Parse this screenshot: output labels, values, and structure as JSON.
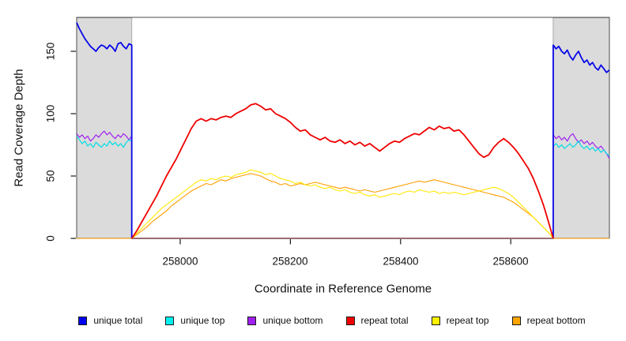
{
  "axes": {
    "x": {
      "title": "Coordinate in Reference Genome"
    },
    "y": {
      "title": "Read Coverage Depth"
    }
  },
  "legend": {
    "items": [
      {
        "label": "unique total",
        "color": "#0000F0"
      },
      {
        "label": "unique top",
        "color": "#00F0F0"
      },
      {
        "label": "unique bottom",
        "color": "#A020F0"
      },
      {
        "label": "repeat total",
        "color": "#F00000"
      },
      {
        "label": "repeat top",
        "color": "#FFF000"
      },
      {
        "label": "repeat bottom",
        "color": "#FFA500"
      }
    ]
  },
  "chart_data": {
    "type": "line",
    "title": "",
    "xlabel": "Coordinate in Reference Genome",
    "ylabel": "Read Coverage Depth",
    "xlim": [
      257812,
      258779
    ],
    "ylim": [
      0,
      177.2
    ],
    "x_ticks": [
      258000,
      258200,
      258400,
      258600
    ],
    "x_tick_labels": [
      "258000",
      "258200",
      "258400",
      "258600"
    ],
    "y_ticks": [
      0,
      50,
      100,
      150
    ],
    "y_tick_labels": [
      "0",
      "50",
      "100",
      "150"
    ],
    "grid": false,
    "legend_position": "bottom",
    "box_color": "#4d4d4d",
    "tick_color": "#1a1a1a",
    "masked_region_boundaries": [
      257912,
      258677
    ],
    "shaded_regions": [
      {
        "x0": 257812,
        "x1": 257912,
        "fill": "#dbdbdb",
        "stroke": "#a9a9a9"
      },
      {
        "x0": 258677,
        "x1": 258779,
        "fill": "#dbdbdb",
        "stroke": "#a9a9a9"
      }
    ],
    "series": [
      {
        "name": "unique bottom",
        "color": "#A020F0",
        "width": 1.2,
        "segments": [
          {
            "x0": 257812,
            "dx": 5,
            "v": [
              84,
              81,
              83,
              80,
              82,
              78,
              80,
              83,
              81,
              84,
              86,
              83,
              85,
              82,
              80,
              83,
              81,
              84,
              82,
              79,
              82
            ]
          },
          {
            "x0": 257912,
            "dx": 765,
            "v": [
              0,
              0
            ]
          },
          {
            "x0": 258677,
            "dx": 5.1,
            "v": [
              83,
              80,
              82,
              79,
              81,
              78,
              82,
              84,
              80,
              77,
              79,
              76,
              78,
              75,
              77,
              74,
              72,
              74,
              71,
              68,
              64
            ]
          }
        ]
      },
      {
        "name": "unique top",
        "color": "#00DDE5",
        "width": 1.2,
        "segments": [
          {
            "x0": 257812,
            "dx": 5,
            "v": [
              82,
              79,
              76,
              78,
              74,
              76,
              73,
              77,
              75,
              73,
              76,
              74,
              78,
              75,
              77,
              74,
              76,
              73,
              77,
              79,
              78
            ]
          },
          {
            "x0": 257912,
            "dx": 765,
            "v": [
              0,
              0
            ]
          },
          {
            "x0": 258677,
            "dx": 5.1,
            "v": [
              74,
              76,
              73,
              75,
              72,
              74,
              76,
              73,
              75,
              78,
              74,
              72,
              74,
              71,
              73,
              70,
              72,
              69,
              71,
              68,
              66
            ]
          }
        ]
      },
      {
        "name": "unique total",
        "color": "#0808E8",
        "width": 1.8,
        "segments": [
          {
            "x0": 257812,
            "dx": 5,
            "v": [
              173,
              168,
              164,
              160,
              157,
              154,
              152,
              150,
              153,
              155,
              154,
              152,
              155,
              153,
              150,
              156,
              157,
              154,
              152,
              156,
              155
            ]
          },
          {
            "x0": 257912,
            "dx": 765,
            "v": [
              0,
              0
            ]
          },
          {
            "x0": 258677,
            "dx": 5.1,
            "v": [
              155,
              152,
              154,
              150,
              148,
              151,
              146,
              143,
              147,
              150,
              145,
              141,
              143,
              139,
              141,
              137,
              135,
              139,
              136,
              133,
              135
            ]
          }
        ]
      },
      {
        "name": "repeat bottom",
        "color": "#FF9E00",
        "width": 1.1,
        "segments": [
          {
            "x0": 257912,
            "dx": 9,
            "v": [
              0,
              3,
              6,
              9,
              13,
              16,
              19,
              22,
              26,
              29,
              32,
              35,
              38,
              40,
              42,
              44,
              43,
              45,
              47,
              46,
              48,
              49,
              50,
              51,
              52,
              51,
              50,
              48,
              46,
              45,
              43,
              44,
              42,
              43,
              44,
              43,
              44,
              45,
              44,
              43,
              42,
              41,
              40,
              41,
              40,
              39,
              38,
              39,
              38,
              37,
              38,
              39,
              40,
              41,
              42,
              43,
              44,
              45,
              46,
              45,
              46,
              47,
              46,
              45,
              44,
              43,
              42,
              41,
              40,
              39,
              38,
              37,
              36,
              35,
              34,
              33,
              31,
              29,
              26,
              23,
              20,
              17,
              13,
              9,
              5,
              0
            ]
          },
          {
            "x0": 257812,
            "dx": 100,
            "v": [
              0,
              0
            ]
          },
          {
            "x0": 258677,
            "dx": 102,
            "v": [
              0,
              0
            ]
          }
        ]
      },
      {
        "name": "repeat top",
        "color": "#FFE800",
        "width": 1.1,
        "segments": [
          {
            "x0": 257912,
            "dx": 9,
            "v": [
              0,
              4,
              8,
              12,
              16,
              20,
              24,
              27,
              30,
              33,
              36,
              39,
              42,
              45,
              47,
              46,
              48,
              47,
              49,
              50,
              49,
              51,
              52,
              53,
              55,
              54,
              53,
              51,
              52,
              50,
              48,
              47,
              46,
              44,
              45,
              43,
              42,
              43,
              41,
              40,
              41,
              39,
              38,
              39,
              37,
              36,
              37,
              35,
              34,
              35,
              33,
              34,
              35,
              36,
              35,
              37,
              38,
              37,
              39,
              38,
              37,
              38,
              36,
              37,
              36,
              37,
              36,
              35,
              36,
              37,
              38,
              39,
              40,
              41,
              40,
              38,
              36,
              33,
              29,
              25,
              21,
              17,
              13,
              9,
              5,
              0
            ]
          }
        ]
      },
      {
        "name": "repeat total",
        "color": "#EE0000",
        "width": 1.8,
        "segments": [
          {
            "x0": 257912,
            "dx": 9,
            "v": [
              0,
              6,
              13,
              20,
              27,
              34,
              42,
              50,
              57,
              64,
              72,
              80,
              88,
              94,
              96,
              94,
              96,
              95,
              97,
              98,
              97,
              100,
              102,
              104,
              107,
              108,
              106,
              103,
              104,
              100,
              98,
              96,
              93,
              89,
              86,
              87,
              83,
              81,
              79,
              81,
              78,
              77,
              79,
              76,
              78,
              75,
              77,
              74,
              76,
              73,
              70,
              73,
              76,
              78,
              77,
              80,
              82,
              84,
              83,
              86,
              89,
              87,
              90,
              88,
              89,
              86,
              87,
              83,
              78,
              73,
              68,
              65,
              67,
              73,
              77,
              80,
              77,
              73,
              68,
              62,
              56,
              48,
              38,
              27,
              14,
              0
            ]
          }
        ]
      }
    ]
  }
}
